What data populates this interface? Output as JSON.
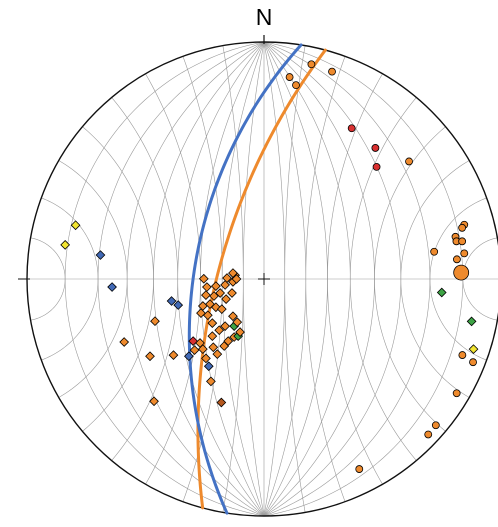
{
  "diagram": {
    "type": "stereonet",
    "net": "wulff-equal-angle",
    "grid_interval_deg": 10,
    "north_label": "N",
    "colors": {
      "outline": "#111111",
      "grid": "#9a9a9a",
      "great_circle_orange": "#EE8A2D",
      "great_circle_blue": "#4472C4",
      "orange": "#EE8A2D",
      "red": "#D93030",
      "blue": "#4169B5",
      "green": "#3DA345",
      "yellow": "#F2E531",
      "brown": "#B5581E"
    },
    "great_circles": [
      {
        "color": "orange",
        "dip_direction": 285,
        "dip": 68
      },
      {
        "color": "blue",
        "dip_direction": 279,
        "dip": 57
      }
    ],
    "points": [
      {
        "x": 0.2,
        "y": 0.906,
        "shape": "circle",
        "color": "orange",
        "size": 6
      },
      {
        "x": 0.287,
        "y": 0.875,
        "shape": "circle",
        "color": "orange",
        "size": 6
      },
      {
        "x": 0.108,
        "y": 0.852,
        "shape": "circle",
        "color": "orange",
        "size": 6
      },
      {
        "x": 0.135,
        "y": 0.818,
        "shape": "circle",
        "color": "orange",
        "size": 6
      },
      {
        "x": 0.37,
        "y": 0.636,
        "shape": "circle",
        "color": "red",
        "size": 6
      },
      {
        "x": 0.47,
        "y": 0.553,
        "shape": "circle",
        "color": "red",
        "size": 6
      },
      {
        "x": 0.475,
        "y": 0.473,
        "shape": "circle",
        "color": "red",
        "size": 6
      },
      {
        "x": 0.612,
        "y": 0.496,
        "shape": "circle",
        "color": "orange",
        "size": 6
      },
      {
        "x": 0.845,
        "y": 0.229,
        "shape": "circle",
        "color": "orange",
        "size": 6
      },
      {
        "x": 0.808,
        "y": 0.178,
        "shape": "circle",
        "color": "orange",
        "size": 6
      },
      {
        "x": 0.812,
        "y": 0.159,
        "shape": "circle",
        "color": "orange",
        "size": 6
      },
      {
        "x": 0.836,
        "y": 0.159,
        "shape": "circle",
        "color": "orange",
        "size": 6
      },
      {
        "x": 0.836,
        "y": 0.216,
        "shape": "circle",
        "color": "orange",
        "size": 6
      },
      {
        "x": 0.718,
        "y": 0.115,
        "shape": "circle",
        "color": "orange",
        "size": 6
      },
      {
        "x": 0.814,
        "y": 0.083,
        "shape": "circle",
        "color": "orange",
        "size": 6
      },
      {
        "x": 0.845,
        "y": 0.108,
        "shape": "circle",
        "color": "orange",
        "size": 6
      },
      {
        "x": 0.832,
        "y": 0.027,
        "shape": "circle",
        "color": "orange",
        "size": 14
      },
      {
        "x": 0.75,
        "y": -0.057,
        "shape": "diamond",
        "color": "green",
        "size": 6
      },
      {
        "x": 0.876,
        "y": -0.179,
        "shape": "diamond",
        "color": "green",
        "size": 6
      },
      {
        "x": 0.884,
        "y": -0.296,
        "shape": "diamond",
        "color": "yellow",
        "size": 6
      },
      {
        "x": 0.837,
        "y": -0.321,
        "shape": "circle",
        "color": "orange",
        "size": 6
      },
      {
        "x": 0.882,
        "y": -0.351,
        "shape": "circle",
        "color": "orange",
        "size": 6
      },
      {
        "x": 0.813,
        "y": -0.482,
        "shape": "circle",
        "color": "orange",
        "size": 6
      },
      {
        "x": 0.725,
        "y": -0.617,
        "shape": "circle",
        "color": "orange",
        "size": 6
      },
      {
        "x": 0.693,
        "y": -0.656,
        "shape": "circle",
        "color": "orange",
        "size": 6
      },
      {
        "x": 0.402,
        "y": -0.802,
        "shape": "circle",
        "color": "orange",
        "size": 6
      },
      {
        "x": -0.795,
        "y": 0.227,
        "shape": "diamond",
        "color": "yellow",
        "size": 6
      },
      {
        "x": -0.839,
        "y": 0.144,
        "shape": "diamond",
        "color": "yellow",
        "size": 6
      },
      {
        "x": -0.69,
        "y": 0.101,
        "shape": "diamond",
        "color": "blue",
        "size": 6
      },
      {
        "x": -0.641,
        "y": -0.034,
        "shape": "diamond",
        "color": "blue",
        "size": 6
      },
      {
        "x": -0.39,
        "y": -0.093,
        "shape": "diamond",
        "color": "blue",
        "size": 6
      },
      {
        "x": -0.362,
        "y": -0.11,
        "shape": "diamond",
        "color": "blue",
        "size": 6
      },
      {
        "x": -0.46,
        "y": -0.178,
        "shape": "diamond",
        "color": "orange",
        "size": 6
      },
      {
        "x": -0.59,
        "y": -0.266,
        "shape": "diamond",
        "color": "orange",
        "size": 6
      },
      {
        "x": -0.481,
        "y": -0.326,
        "shape": "diamond",
        "color": "orange",
        "size": 6
      },
      {
        "x": -0.382,
        "y": -0.321,
        "shape": "diamond",
        "color": "orange",
        "size": 6
      },
      {
        "x": -0.464,
        "y": -0.516,
        "shape": "diamond",
        "color": "orange",
        "size": 6
      },
      {
        "x": -0.224,
        "y": -0.432,
        "shape": "diamond",
        "color": "orange",
        "size": 6
      },
      {
        "x": -0.18,
        "y": -0.521,
        "shape": "diamond",
        "color": "brown",
        "size": 6
      },
      {
        "x": -0.233,
        "y": -0.368,
        "shape": "diamond",
        "color": "blue",
        "size": 6
      },
      {
        "x": -0.317,
        "y": -0.326,
        "shape": "diamond",
        "color": "blue",
        "size": 6
      },
      {
        "x": -0.245,
        "y": -0.335,
        "shape": "diamond",
        "color": "orange",
        "size": 6
      },
      {
        "x": -0.293,
        "y": -0.3,
        "shape": "diamond",
        "color": "orange",
        "size": 6
      },
      {
        "x": -0.258,
        "y": -0.296,
        "shape": "diamond",
        "color": "orange",
        "size": 6
      },
      {
        "x": -0.27,
        "y": -0.27,
        "shape": "diamond",
        "color": "orange",
        "size": 6
      },
      {
        "x": -0.299,
        "y": -0.262,
        "shape": "diamond",
        "color": "red",
        "size": 6
      },
      {
        "x": -0.218,
        "y": -0.241,
        "shape": "diamond",
        "color": "orange",
        "size": 6
      },
      {
        "x": -0.214,
        "y": -0.288,
        "shape": "diamond",
        "color": "orange",
        "size": 6
      },
      {
        "x": -0.197,
        "y": -0.317,
        "shape": "diamond",
        "color": "orange",
        "size": 6
      },
      {
        "x": -0.168,
        "y": -0.283,
        "shape": "diamond",
        "color": "orange",
        "size": 6
      },
      {
        "x": -0.151,
        "y": -0.262,
        "shape": "diamond",
        "color": "orange",
        "size": 6
      },
      {
        "x": -0.126,
        "y": -0.245,
        "shape": "diamond",
        "color": "orange",
        "size": 6
      },
      {
        "x": -0.126,
        "y": -0.199,
        "shape": "diamond",
        "color": "green",
        "size": 6
      },
      {
        "x": -0.109,
        "y": -0.241,
        "shape": "diamond",
        "color": "green",
        "size": 6
      },
      {
        "x": -0.101,
        "y": -0.224,
        "shape": "diamond",
        "color": "orange",
        "size": 6
      },
      {
        "x": -0.113,
        "y": -0.182,
        "shape": "diamond",
        "color": "orange",
        "size": 6
      },
      {
        "x": -0.131,
        "y": -0.157,
        "shape": "diamond",
        "color": "orange",
        "size": 6
      },
      {
        "x": -0.164,
        "y": -0.199,
        "shape": "diamond",
        "color": "orange",
        "size": 6
      },
      {
        "x": -0.189,
        "y": -0.216,
        "shape": "diamond",
        "color": "orange",
        "size": 6
      },
      {
        "x": -0.218,
        "y": -0.186,
        "shape": "diamond",
        "color": "orange",
        "size": 6
      },
      {
        "x": -0.237,
        "y": -0.153,
        "shape": "diamond",
        "color": "orange",
        "size": 6
      },
      {
        "x": -0.266,
        "y": -0.144,
        "shape": "diamond",
        "color": "orange",
        "size": 6
      },
      {
        "x": -0.258,
        "y": -0.114,
        "shape": "diamond",
        "color": "orange",
        "size": 6
      },
      {
        "x": -0.228,
        "y": -0.106,
        "shape": "diamond",
        "color": "orange",
        "size": 6
      },
      {
        "x": -0.203,
        "y": -0.119,
        "shape": "diamond",
        "color": "orange",
        "size": 6
      },
      {
        "x": -0.178,
        "y": -0.127,
        "shape": "diamond",
        "color": "orange",
        "size": 6
      },
      {
        "x": -0.16,
        "y": -0.085,
        "shape": "diamond",
        "color": "orange",
        "size": 6
      },
      {
        "x": -0.135,
        "y": -0.059,
        "shape": "diamond",
        "color": "orange",
        "size": 6
      },
      {
        "x": -0.185,
        "y": -0.059,
        "shape": "diamond",
        "color": "orange",
        "size": 6
      },
      {
        "x": -0.211,
        "y": -0.072,
        "shape": "diamond",
        "color": "orange",
        "size": 6
      },
      {
        "x": -0.245,
        "y": -0.068,
        "shape": "diamond",
        "color": "orange",
        "size": 6
      },
      {
        "x": -0.241,
        "y": -0.034,
        "shape": "diamond",
        "color": "orange",
        "size": 6
      },
      {
        "x": -0.203,
        "y": -0.03,
        "shape": "diamond",
        "color": "orange",
        "size": 6
      },
      {
        "x": -0.164,
        "y": -0.025,
        "shape": "diamond",
        "color": "orange",
        "size": 6
      },
      {
        "x": -0.131,
        "y": -0.012,
        "shape": "diamond",
        "color": "orange",
        "size": 6
      },
      {
        "x": -0.156,
        "y": 0.004,
        "shape": "diamond",
        "color": "orange",
        "size": 6
      },
      {
        "x": -0.122,
        "y": 0.016,
        "shape": "diamond",
        "color": "orange",
        "size": 6
      },
      {
        "x": -0.116,
        "y": 0.0,
        "shape": "diamond",
        "color": "orange",
        "size": 6
      },
      {
        "x": -0.131,
        "y": 0.025,
        "shape": "diamond",
        "color": "orange",
        "size": 6
      },
      {
        "x": -0.254,
        "y": 0.001,
        "shape": "diamond",
        "color": "orange",
        "size": 6
      }
    ]
  }
}
